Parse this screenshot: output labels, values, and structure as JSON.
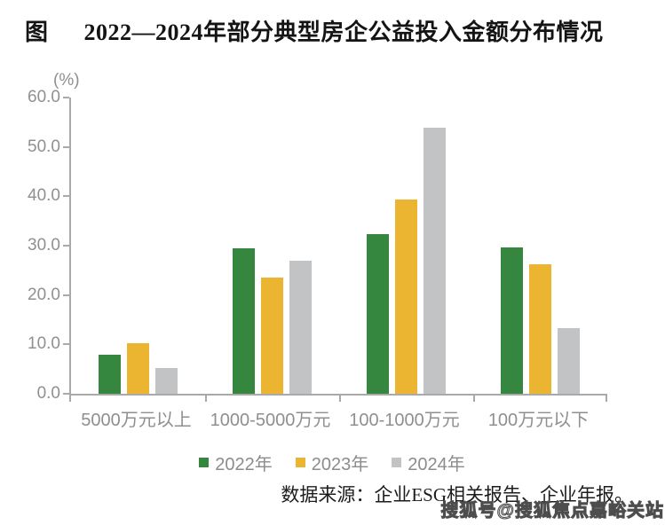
{
  "title": {
    "prefix": "图",
    "text": "2022—2024年部分典型房企公益投入金额分布情况"
  },
  "chart_data": {
    "type": "bar",
    "title": "2022—2024年部分典型房企公益投入金额分布情况",
    "xlabel": "",
    "ylabel": "(%)",
    "unit_label": "(%)",
    "ylim": [
      0,
      60
    ],
    "yticks": [
      "60.0",
      "50.0",
      "40.0",
      "30.0",
      "20.0",
      "10.0",
      "0.0"
    ],
    "grid": false,
    "legend_position": "bottom",
    "categories": [
      "5000万元以上",
      "1000-5000万元",
      "100-1000万元",
      "100万元以下"
    ],
    "series": [
      {
        "name": "2022年",
        "color": "#35873F",
        "values": [
          7.9,
          29.5,
          32.4,
          29.6
        ]
      },
      {
        "name": "2023年",
        "color": "#EBB531",
        "values": [
          10.3,
          23.6,
          39.4,
          26.2
        ]
      },
      {
        "name": "2024年",
        "color": "#C2C3C5",
        "values": [
          5.3,
          26.9,
          53.9,
          13.3
        ]
      }
    ]
  },
  "footer": {
    "source": "数据来源：企业ESG相关报告、企业年报。"
  },
  "watermark": "搜狐号@搜狐焦点嘉峪关站",
  "colors": {
    "axis": "#A9A9A9",
    "tick_label": "#909090",
    "legend_text": "#8C8C8C",
    "title_text": "#141414"
  }
}
